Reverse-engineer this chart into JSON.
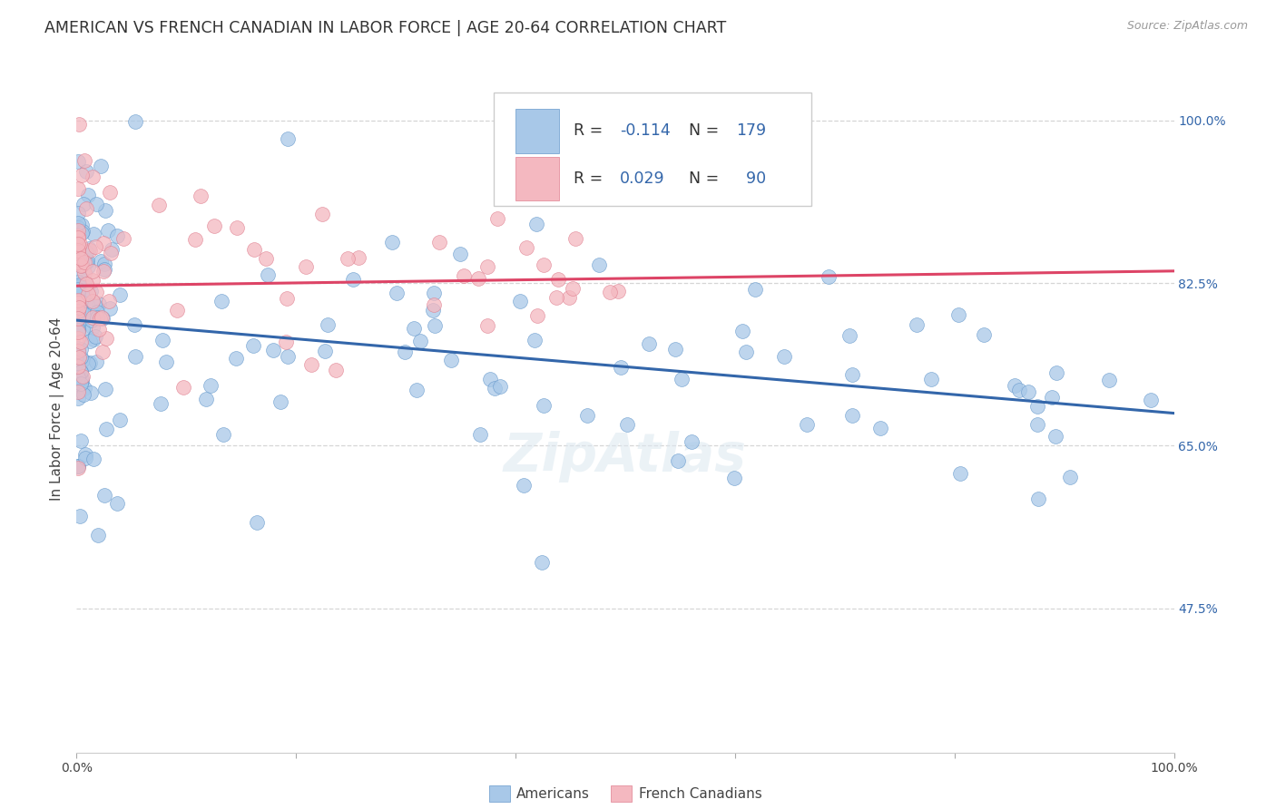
{
  "title": "AMERICAN VS FRENCH CANADIAN IN LABOR FORCE | AGE 20-64 CORRELATION CHART",
  "source": "Source: ZipAtlas.com",
  "ylabel": "In Labor Force | Age 20-64",
  "xlim": [
    0.0,
    1.0
  ],
  "ylim": [
    0.32,
    1.06
  ],
  "yticks": [
    0.475,
    0.65,
    0.825,
    1.0
  ],
  "ytick_labels": [
    "47.5%",
    "65.0%",
    "82.5%",
    "100.0%"
  ],
  "american_color": "#a8c8e8",
  "american_edge_color": "#6699cc",
  "french_color": "#f4b8c0",
  "french_edge_color": "#e08090",
  "american_line_color": "#3366aa",
  "french_line_color": "#dd4466",
  "R_american": -0.114,
  "N_american": 179,
  "R_french": 0.029,
  "N_french": 90,
  "legend_label_american": "Americans",
  "legend_label_french": "French Canadians",
  "background_color": "#ffffff",
  "grid_color": "#cccccc",
  "title_fontsize": 12.5,
  "axis_label_fontsize": 11,
  "tick_fontsize": 10,
  "am_trend_y0": 0.785,
  "am_trend_y1": 0.685,
  "fr_trend_y0": 0.822,
  "fr_trend_y1": 0.838
}
